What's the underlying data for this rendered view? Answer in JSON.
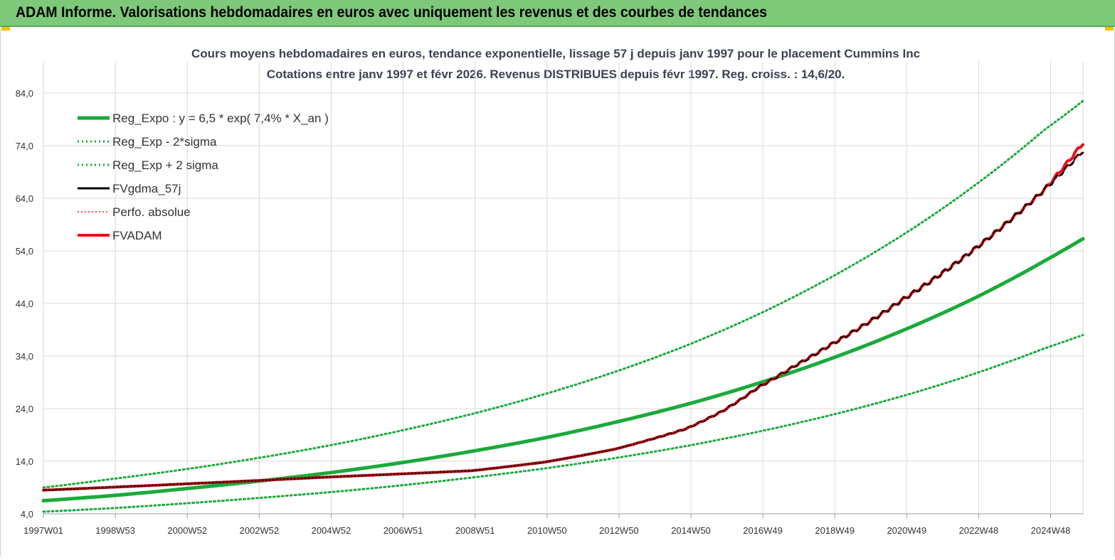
{
  "banner": {
    "title": "ADAM Informe. Valorisations hebdomadaires en euros avec uniquement les revenus et des courbes de tendances"
  },
  "colors": {
    "banner_bg": "#7ec87a",
    "green": "#1aaa3a",
    "black": "#000000",
    "red": "#e8101a",
    "grid": "#d9d9d9"
  },
  "chart_data": {
    "type": "line",
    "title_line1": "Cours moyens hebdomadaires en euros, tendance exponentielle, lissage 57 j depuis janv 1997 pour le placement Cummins Inc",
    "title_line2": "Cotations entre janv 1997 et févr 2026. Revenus DISTRIBUES depuis févr 1997. Reg. croiss. : 14,6/20.",
    "xlabel": "",
    "ylabel": "",
    "x_range": [
      1997.0,
      2026.1
    ],
    "ylim": [
      4.0,
      84.0
    ],
    "y_ticks": [
      "4,0",
      "14,0",
      "24,0",
      "34,0",
      "44,0",
      "54,0",
      "64,0",
      "74,0",
      "84,0"
    ],
    "x_ticks": [
      "1997W01",
      "1998W53",
      "2000W52",
      "2002W52",
      "2004W52",
      "2006W51",
      "2008W51",
      "2010W50",
      "2012W50",
      "2014W50",
      "2016W49",
      "2018W49",
      "2020W49",
      "2022W48",
      "2024W48"
    ],
    "grid": true,
    "legend_position": "top-left",
    "series": [
      {
        "name": "Reg_Expo : y = 6,5 * exp( 7,4% *  X_an )",
        "color": "#1aaa3a",
        "style": "solid",
        "x": [
          1997.0,
          1999.0,
          2001.0,
          2003.0,
          2005.0,
          2007.0,
          2009.0,
          2011.0,
          2013.0,
          2015.0,
          2017.0,
          2019.0,
          2021.0,
          2023.0,
          2025.0,
          2026.1
        ],
        "y": [
          6.5,
          7.5,
          8.8,
          10.2,
          11.8,
          13.7,
          15.9,
          18.4,
          21.4,
          24.8,
          28.8,
          33.4,
          38.7,
          44.8,
          52.0,
          56.3
        ]
      },
      {
        "name": "Reg_Exp - 2*sigma",
        "color": "#1aaa3a",
        "style": "dotted",
        "x": [
          1997.0,
          1999.0,
          2001.0,
          2003.0,
          2005.0,
          2007.0,
          2009.0,
          2011.0,
          2013.0,
          2015.0,
          2017.0,
          2019.0,
          2021.0,
          2023.0,
          2025.0,
          2026.1
        ],
        "y": [
          4.4,
          5.1,
          6.0,
          7.0,
          8.1,
          9.4,
          10.9,
          12.6,
          14.6,
          16.9,
          19.6,
          22.7,
          26.3,
          30.5,
          35.4,
          38.0
        ]
      },
      {
        "name": "Reg_Exp + 2 sigma",
        "color": "#1aaa3a",
        "style": "dotted",
        "x": [
          1997.0,
          1999.0,
          2001.0,
          2003.0,
          2005.0,
          2007.0,
          2009.0,
          2011.0,
          2013.0,
          2015.0,
          2017.0,
          2019.0,
          2021.0,
          2023.0,
          2025.0,
          2026.1
        ],
        "y": [
          9.0,
          10.7,
          12.5,
          14.6,
          17.0,
          19.8,
          23.0,
          26.7,
          31.0,
          36.0,
          41.9,
          48.8,
          56.8,
          66.1,
          76.9,
          82.5
        ]
      },
      {
        "name": "FVgdma_57j",
        "color": "#000000",
        "style": "solid",
        "x": [
          1997.0,
          2001.0,
          2005.0,
          2009.0,
          2011.0,
          2013.0,
          2015.0,
          2016.0,
          2017.0,
          2018.0,
          2019.0,
          2020.0,
          2021.0,
          2022.0,
          2023.0,
          2024.0,
          2025.0,
          2026.1
        ],
        "y": [
          8.5,
          9.7,
          11.0,
          12.2,
          13.8,
          16.3,
          20.2,
          23.5,
          28.0,
          32.0,
          36.0,
          40.0,
          44.5,
          49.0,
          54.0,
          59.5,
          65.5,
          73.0
        ]
      },
      {
        "name": "Perfo. absolue",
        "color": "#e8101a",
        "style": "dotted",
        "x": [
          1997.0,
          2001.0,
          2005.0,
          2009.0,
          2011.0,
          2013.0,
          2015.0,
          2016.0,
          2017.0,
          2018.0,
          2019.0,
          2020.0,
          2021.0,
          2022.0,
          2023.0,
          2024.0,
          2025.0,
          2026.1
        ],
        "y": [
          8.5,
          9.7,
          11.0,
          12.2,
          13.8,
          16.3,
          20.2,
          23.5,
          28.0,
          32.0,
          36.0,
          40.0,
          44.5,
          49.0,
          54.0,
          59.5,
          65.5,
          73.0
        ]
      },
      {
        "name": "FVADAM",
        "color": "#e8101a",
        "style": "solid",
        "x": [
          1997.0,
          2001.0,
          2005.0,
          2009.0,
          2011.0,
          2013.0,
          2015.0,
          2016.0,
          2017.0,
          2018.0,
          2019.0,
          2020.0,
          2021.0,
          2022.0,
          2023.0,
          2024.0,
          2025.0,
          2026.1
        ],
        "y": [
          8.5,
          9.7,
          11.0,
          12.2,
          13.8,
          16.3,
          20.2,
          23.5,
          28.0,
          32.0,
          36.0,
          40.0,
          44.5,
          49.0,
          54.0,
          59.5,
          65.5,
          74.5
        ]
      }
    ]
  }
}
